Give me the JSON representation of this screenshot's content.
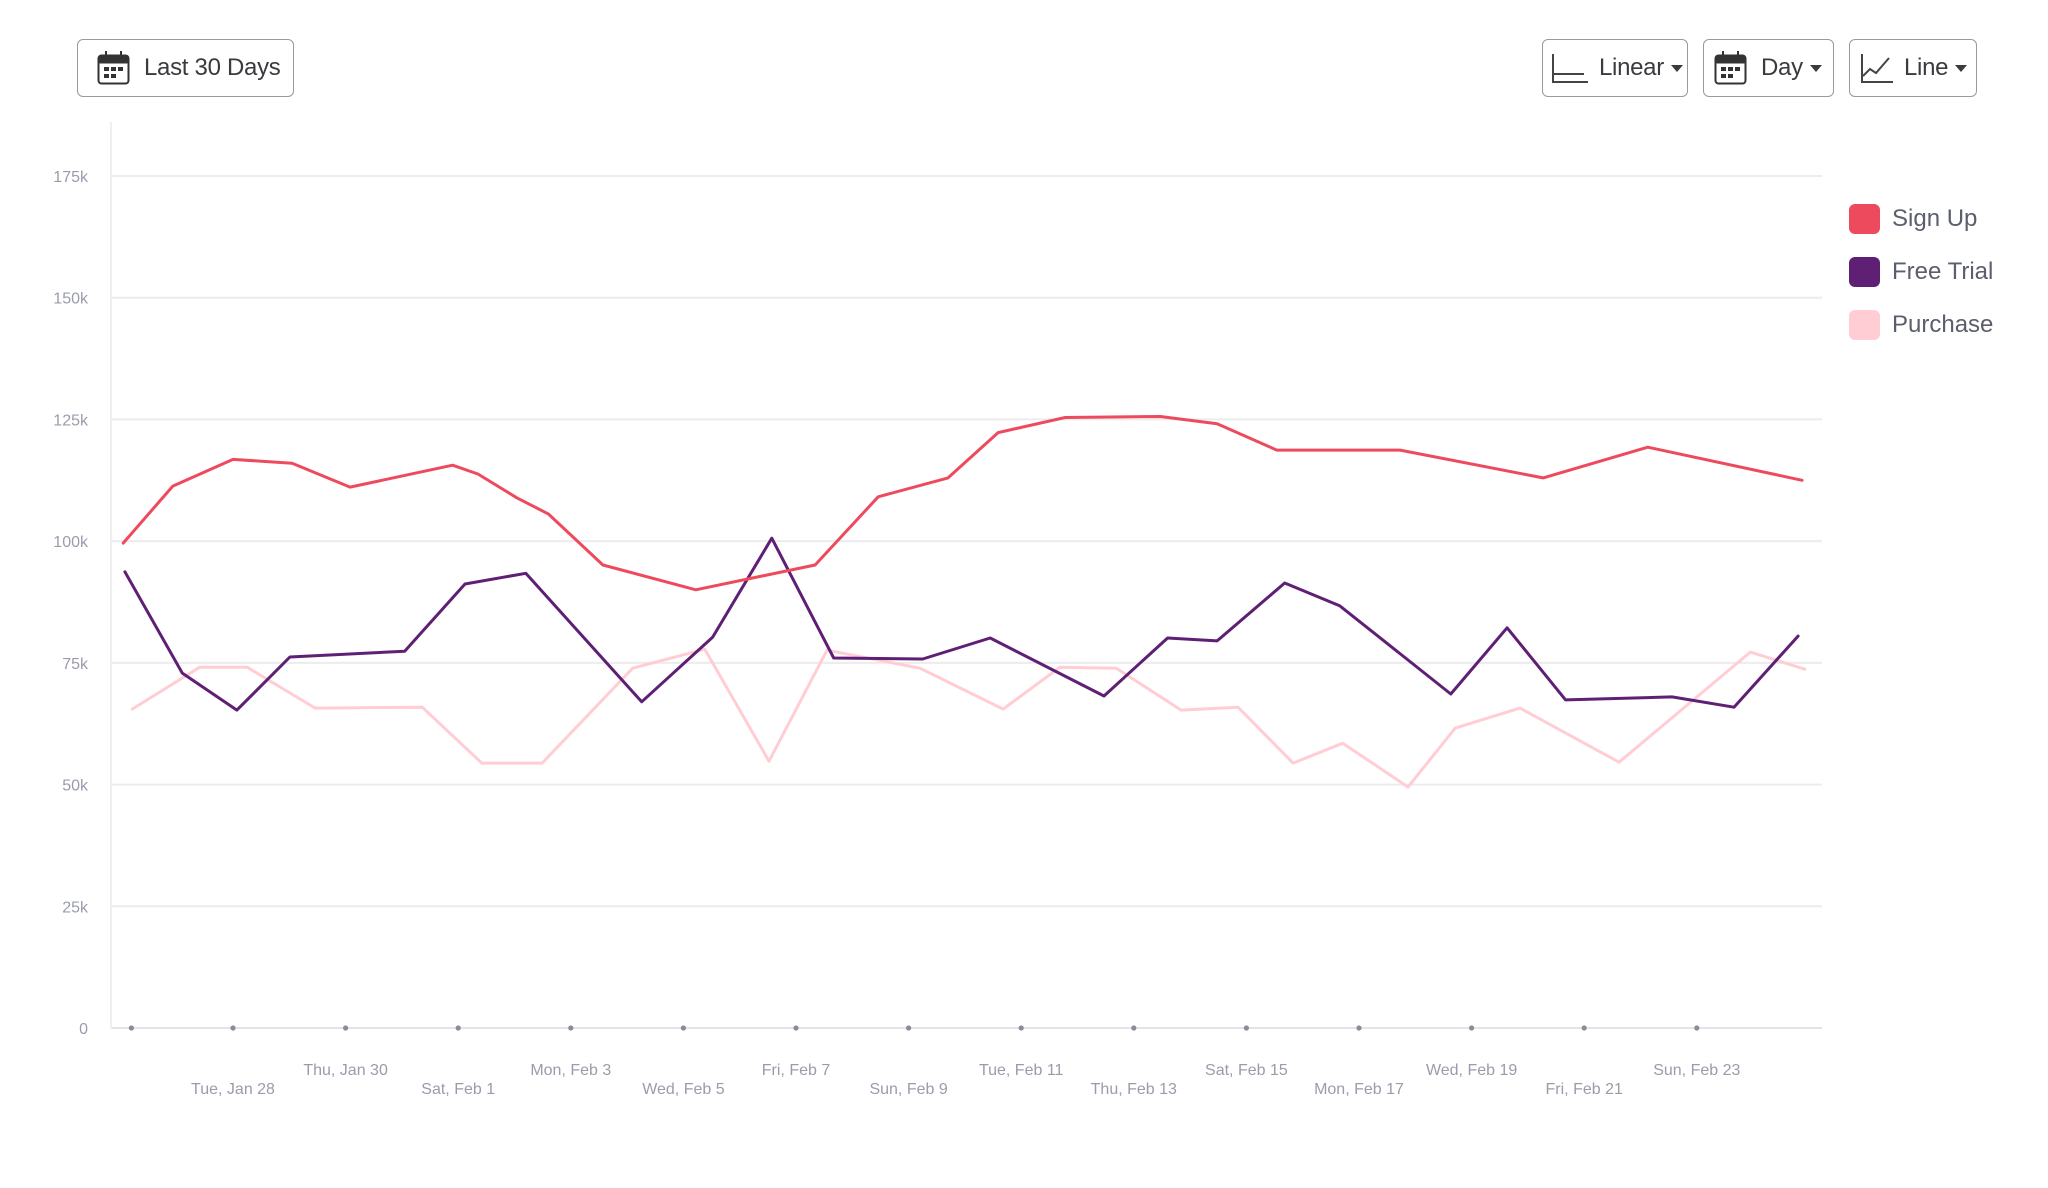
{
  "toolbar": {
    "date_range": {
      "label": "Last 30 Days",
      "icon": "calendar-icon"
    },
    "scale": {
      "label": "Linear",
      "icon": "axis-icon"
    },
    "interval": {
      "label": "Day",
      "icon": "calendar-icon"
    },
    "chart_type": {
      "label": "Line",
      "icon": "line-chart-icon"
    }
  },
  "legend": [
    {
      "name": "Sign Up",
      "color": "#ee4a5e"
    },
    {
      "name": "Free Trial",
      "color": "#5e1f74"
    },
    {
      "name": "Purchase",
      "color": "#ffcdd3"
    }
  ],
  "chart_data": {
    "type": "line",
    "title": "",
    "xlabel": "",
    "ylabel": "",
    "x_unit": "days since Sun, Jan 26",
    "ylim": [
      0,
      175000
    ],
    "yticks": [
      {
        "value": 0,
        "label": "0"
      },
      {
        "value": 25000,
        "label": "25k"
      },
      {
        "value": 50000,
        "label": "50k"
      },
      {
        "value": 75000,
        "label": "75k"
      },
      {
        "value": 100000,
        "label": "100k"
      },
      {
        "value": 125000,
        "label": "125k"
      },
      {
        "value": 150000,
        "label": "150k"
      },
      {
        "value": 175000,
        "label": "175k"
      }
    ],
    "xticks": [
      {
        "day": 0,
        "label": ""
      },
      {
        "day": 2,
        "label": "Tue, Jan 28"
      },
      {
        "day": 4,
        "label": "Thu, Jan 30"
      },
      {
        "day": 6,
        "label": "Sat, Feb 1"
      },
      {
        "day": 8,
        "label": "Mon, Feb 3"
      },
      {
        "day": 10,
        "label": "Wed, Feb 5"
      },
      {
        "day": 12,
        "label": "Fri, Feb 7"
      },
      {
        "day": 14,
        "label": "Sun, Feb 9"
      },
      {
        "day": 16,
        "label": "Tue, Feb 11"
      },
      {
        "day": 18,
        "label": "Thu, Feb  13"
      },
      {
        "day": 20,
        "label": "Sat, Feb 15"
      },
      {
        "day": 22,
        "label": "Mon, Feb 17"
      },
      {
        "day": 24,
        "label": "Wed, Feb 19"
      },
      {
        "day": 26,
        "label": "Fri, Feb 21"
      },
      {
        "day": 28,
        "label": "Sun, Feb 23"
      }
    ],
    "xlim": [
      -0.2,
      30.2
    ],
    "grid": true,
    "legend_position": "right",
    "series": [
      {
        "name": "Sign Up",
        "color": "#ee4a5e",
        "points": [
          [
            0.05,
            99600
          ],
          [
            0.93,
            111300
          ],
          [
            2.0,
            116800
          ],
          [
            3.05,
            116000
          ],
          [
            4.08,
            111100
          ],
          [
            5.9,
            115600
          ],
          [
            6.35,
            113800
          ],
          [
            7.04,
            108900
          ],
          [
            7.6,
            105600
          ],
          [
            8.57,
            95100
          ],
          [
            10.22,
            90000
          ],
          [
            12.34,
            95100
          ],
          [
            13.46,
            109100
          ],
          [
            14.7,
            113000
          ],
          [
            15.59,
            122300
          ],
          [
            16.78,
            125400
          ],
          [
            18.47,
            125600
          ],
          [
            19.48,
            124100
          ],
          [
            20.54,
            118700
          ],
          [
            22.73,
            118700
          ],
          [
            25.27,
            113000
          ],
          [
            27.13,
            119300
          ],
          [
            29.87,
            112500
          ]
        ]
      },
      {
        "name": "Free Trial",
        "color": "#5e1f74",
        "points": [
          [
            0.08,
            93700
          ],
          [
            1.1,
            72900
          ],
          [
            2.07,
            65300
          ],
          [
            3.01,
            76200
          ],
          [
            5.05,
            77400
          ],
          [
            6.12,
            91200
          ],
          [
            7.2,
            93400
          ],
          [
            9.26,
            67000
          ],
          [
            10.52,
            80300
          ],
          [
            11.57,
            100600
          ],
          [
            12.67,
            76000
          ],
          [
            14.25,
            75800
          ],
          [
            15.45,
            80100
          ],
          [
            17.47,
            68200
          ],
          [
            18.6,
            80100
          ],
          [
            19.48,
            79500
          ],
          [
            20.68,
            91400
          ],
          [
            21.66,
            86700
          ],
          [
            23.63,
            68600
          ],
          [
            24.63,
            82200
          ],
          [
            25.67,
            67400
          ],
          [
            27.56,
            68000
          ],
          [
            28.66,
            65900
          ],
          [
            29.8,
            80500
          ]
        ]
      },
      {
        "name": "Purchase",
        "color": "#ffcdd3",
        "points": [
          [
            0.21,
            65500
          ],
          [
            1.41,
            74100
          ],
          [
            2.25,
            74100
          ],
          [
            3.46,
            65700
          ],
          [
            5.36,
            65900
          ],
          [
            6.42,
            54400
          ],
          [
            7.49,
            54400
          ],
          [
            9.1,
            73900
          ],
          [
            10.38,
            77800
          ],
          [
            11.52,
            54800
          ],
          [
            12.55,
            77600
          ],
          [
            14.2,
            73900
          ],
          [
            15.68,
            65500
          ],
          [
            16.69,
            74100
          ],
          [
            17.69,
            73900
          ],
          [
            18.84,
            65300
          ],
          [
            19.85,
            65900
          ],
          [
            20.83,
            54400
          ],
          [
            21.71,
            58500
          ],
          [
            22.87,
            49500
          ],
          [
            23.71,
            61600
          ],
          [
            24.86,
            65700
          ],
          [
            26.62,
            54600
          ],
          [
            28.95,
            77200
          ],
          [
            29.92,
            73700
          ]
        ]
      }
    ]
  }
}
